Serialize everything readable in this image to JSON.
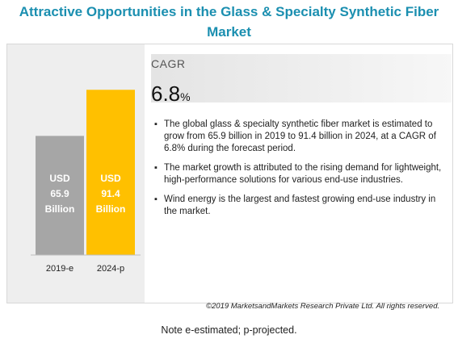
{
  "title": "Attractive Opportunities in the Glass & Specialty Synthetic Fiber Market",
  "chart_data": {
    "type": "bar",
    "categories": [
      "2019-e",
      "2024-p"
    ],
    "values": [
      65.9,
      91.4
    ],
    "bar_labels": [
      [
        "USD",
        "65.9",
        "Billion"
      ],
      [
        "USD",
        "91.4",
        "Billion"
      ]
    ],
    "colors": [
      "#a6a6a6",
      "#ffc000"
    ],
    "xlabel": "",
    "ylabel": "",
    "grid": false,
    "legend": "none"
  },
  "cagr": {
    "label": "CAGR",
    "value": "6.8",
    "unit": "%"
  },
  "bullets": [
    "The global glass & specialty synthetic fiber market is estimated to grow from  65.9 billion in 2019 to 91.4 billion in 2024, at a CAGR of 6.8% during the forecast period.",
    "The market growth is attributed to the rising demand for lightweight, high-performance solutions for various end-use industries.",
    "Wind energy is the largest and fastest  growing end-use industry in the market."
  ],
  "copyright": "©2019 MarketsandMarkets Research Private Ltd. All rights reserved.",
  "note": "Note e-estimated; p-projected."
}
